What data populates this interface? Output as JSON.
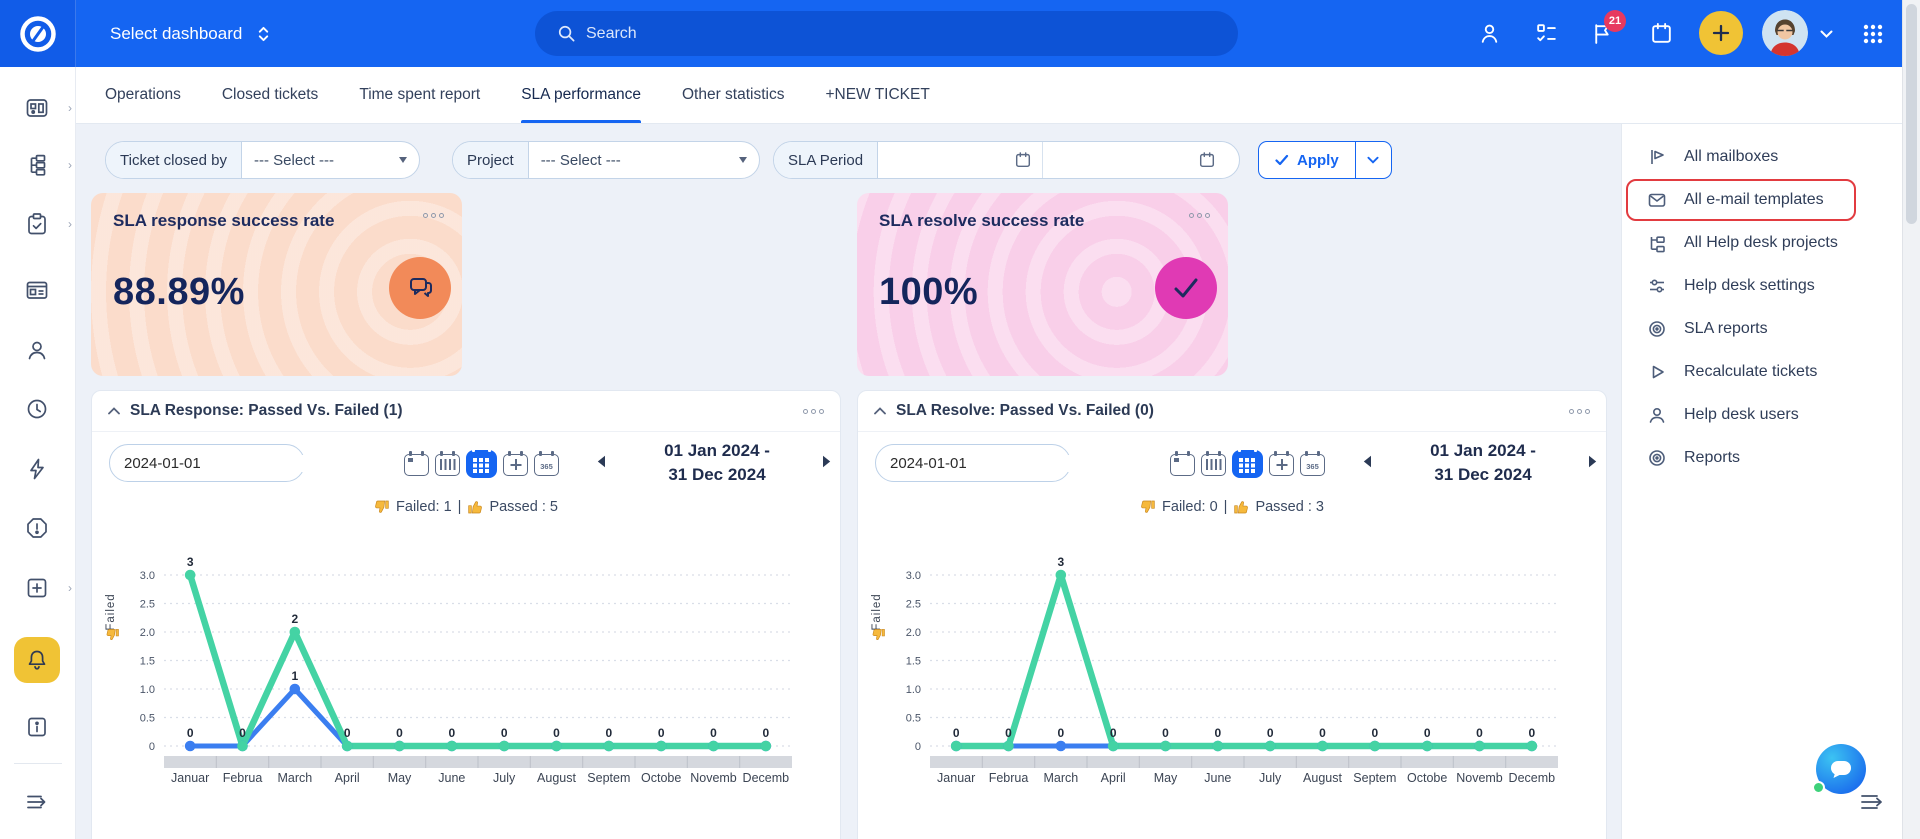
{
  "topbar": {
    "select_dashboard": "Select dashboard",
    "search_placeholder": "Search",
    "notification_badge": "21"
  },
  "tabs": {
    "items": [
      {
        "label": "Operations",
        "active": false
      },
      {
        "label": "Closed tickets",
        "active": false
      },
      {
        "label": "Time spent report",
        "active": false
      },
      {
        "label": "SLA performance",
        "active": true
      },
      {
        "label": "Other statistics",
        "active": false
      },
      {
        "label": "+NEW TICKET",
        "active": false
      }
    ]
  },
  "filters": {
    "ticket_closed_by": {
      "label": "Ticket closed by",
      "value": "--- Select ---"
    },
    "project": {
      "label": "Project",
      "value": "--- Select ---"
    },
    "sla_period": {
      "label": "SLA Period",
      "from_value": "",
      "to_value": ""
    },
    "apply_label": "Apply"
  },
  "kpi_cards": [
    {
      "title": "SLA response success rate",
      "value": "88.89%",
      "accent": "#f28a59",
      "background": "#fbdccb",
      "icon": "chat-bubbles-icon"
    },
    {
      "title": "SLA resolve success rate",
      "value": "100%",
      "accent": "#e03ab4",
      "background": "#f9cfe9",
      "icon": "checkmark-icon"
    }
  ],
  "panels_common": {
    "year_icon_text": "365",
    "legend_separator": "|",
    "view_modes": [
      "day",
      "week",
      "month",
      "quarter",
      "year"
    ],
    "selected_view_mode": "month"
  },
  "chart_panels": [
    {
      "title": "SLA Response: Passed Vs. Failed (1)",
      "date_value": "2024-01-01",
      "range_line1": "01 Jan 2024 -",
      "range_line2": "31 Dec 2024",
      "failed_summary": "Failed: 1",
      "passed_summary": "Passed : 5"
    },
    {
      "title": "SLA Resolve: Passed Vs. Failed (0)",
      "date_value": "2024-01-01",
      "range_line1": "01 Jan 2024 -",
      "range_line2": "31 Dec 2024",
      "failed_summary": "Failed: 0",
      "passed_summary": "Passed : 3"
    }
  ],
  "chart_data": [
    {
      "type": "line",
      "title": "SLA Response: Passed Vs. Failed",
      "categories": [
        "Januar",
        "Februa",
        "March",
        "April",
        "May",
        "June",
        "July",
        "August",
        "Septem",
        "Octobe",
        "Novemb",
        "Decemb"
      ],
      "series": [
        {
          "name": "Failed",
          "color": "#3b7ef0",
          "values": [
            0,
            0,
            1,
            0,
            0,
            0,
            0,
            0,
            0,
            0,
            0,
            0
          ]
        },
        {
          "name": "Passed",
          "color": "#44d3a4",
          "values": [
            3,
            0,
            2,
            0,
            0,
            0,
            0,
            0,
            0,
            0,
            0,
            0
          ]
        }
      ],
      "ylabel": "Failed",
      "yticks": [
        "0",
        "0.5",
        "1.0",
        "1.5",
        "2.0",
        "2.5",
        "3.0"
      ],
      "ylim": [
        0,
        3.4
      ],
      "grid": "dashed-horizontal",
      "totals": {
        "failed": 1,
        "passed": 5
      }
    },
    {
      "type": "line",
      "title": "SLA Resolve: Passed Vs. Failed",
      "categories": [
        "Januar",
        "Februa",
        "March",
        "April",
        "May",
        "June",
        "July",
        "August",
        "Septem",
        "Octobe",
        "Novemb",
        "Decemb"
      ],
      "series": [
        {
          "name": "Failed",
          "color": "#3b7ef0",
          "values": [
            0,
            0,
            0,
            0,
            0,
            0,
            0,
            0,
            0,
            0,
            0,
            0
          ]
        },
        {
          "name": "Passed",
          "color": "#44d3a4",
          "values": [
            0,
            0,
            3,
            0,
            0,
            0,
            0,
            0,
            0,
            0,
            0,
            0
          ]
        }
      ],
      "ylabel": "Failed",
      "yticks": [
        "0",
        "0.5",
        "1.0",
        "1.5",
        "2.0",
        "2.5",
        "3.0"
      ],
      "ylim": [
        0,
        3.4
      ],
      "grid": "dashed-horizontal",
      "totals": {
        "failed": 0,
        "passed": 3
      }
    }
  ],
  "right_menu": {
    "items": [
      {
        "label": "All mailboxes",
        "icon": "mailbox-flag-icon",
        "highlighted": false
      },
      {
        "label": "All e-mail templates",
        "icon": "envelope-icon",
        "highlighted": true
      },
      {
        "label": "All Help desk projects",
        "icon": "projects-tree-icon",
        "highlighted": false
      },
      {
        "label": "Help desk settings",
        "icon": "sliders-icon",
        "highlighted": false
      },
      {
        "label": "SLA reports",
        "icon": "target-icon",
        "highlighted": false
      },
      {
        "label": "Recalculate tickets",
        "icon": "play-icon",
        "highlighted": false
      },
      {
        "label": "Help desk users",
        "icon": "user-icon",
        "highlighted": false
      },
      {
        "label": "Reports",
        "icon": "target-icon",
        "highlighted": false
      }
    ]
  },
  "icons": {
    "search": "magnifier",
    "notifications": "flag-with-badge",
    "tasks": "checklist",
    "calendar": "calendar",
    "add": "plus-in-yellow-circle",
    "apps": "3x3-dot-grid",
    "legend_failed": "thumb-down",
    "legend_passed": "thumb-up",
    "panel_menu": "three-dots",
    "chat": "chat-launcher"
  },
  "colors": {
    "topbar": "#1565f2",
    "search_pill": "#0d53d6",
    "accent_blue": "#1565f2",
    "active_yellow": "#f0c335",
    "badge_pink": "#e73960",
    "highlight_red": "#e23b40",
    "passed_green": "#44d3a4",
    "failed_blue": "#3b7ef0",
    "navy_text": "#16294f",
    "kpi1_bg": "#fbdccb",
    "kpi2_bg": "#f9cfe9"
  }
}
